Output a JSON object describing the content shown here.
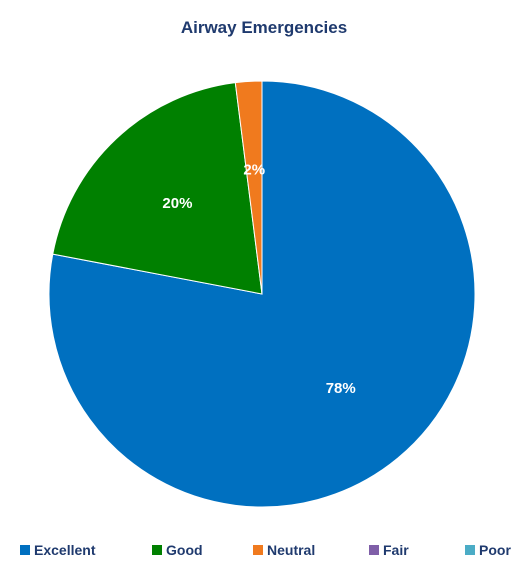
{
  "chart_data": {
    "type": "pie",
    "title": "Airway Emergencies",
    "categories": [
      "Excellent",
      "Good",
      "Neutral",
      "Fair",
      "Poor"
    ],
    "values": [
      78,
      20,
      2,
      0,
      0
    ],
    "data_labels": [
      "78%",
      "20%",
      "2%",
      "",
      ""
    ],
    "colors": [
      "#0070C0",
      "#008000",
      "#F07A1E",
      "#7F5FA8",
      "#4BACC6"
    ],
    "legend_position": "bottom"
  }
}
